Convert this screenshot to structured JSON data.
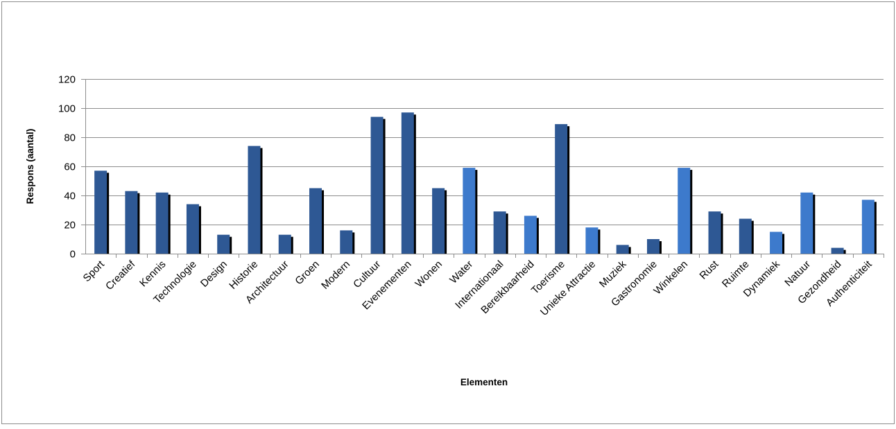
{
  "chart_data": {
    "type": "bar",
    "title": "",
    "xlabel": "Elementen",
    "ylabel": "Respons (aantal)",
    "ylim": [
      0,
      120
    ],
    "yticks": [
      0,
      20,
      40,
      60,
      80,
      100,
      120
    ],
    "grid": true,
    "legend": "none",
    "categories": [
      "Sport",
      "Creatief",
      "Kennis",
      "Technologie",
      "Design",
      "Historie",
      "Architectuur",
      "Groen",
      "Modern",
      "Cultuur",
      "Evenementen",
      "Wonen",
      "Water",
      "Internationaal",
      "Bereikbaarheid",
      "Toerisme",
      "Unieke Attractie",
      "Muziek",
      "Gastronomie",
      "Winkelen",
      "Rust",
      "Ruimte",
      "Dynamiek",
      "Natuur",
      "Gezondheid",
      "Authenticiteit"
    ],
    "values": [
      57,
      43,
      42,
      34,
      13,
      74,
      13,
      45,
      16,
      94,
      97,
      45,
      59,
      29,
      26,
      89,
      18,
      6,
      10,
      59,
      29,
      24,
      15,
      42,
      4,
      37
    ],
    "bar_color": [
      "#2e5894",
      "#2e5894",
      "#2e5894",
      "#2e5894",
      "#2e5894",
      "#2e5894",
      "#2e5894",
      "#2e5894",
      "#2e5894",
      "#2e5894",
      "#2e5894",
      "#2e5894",
      "#3d7acc",
      "#2e5894",
      "#3d7acc",
      "#2e5894",
      "#3d7acc",
      "#2e5894",
      "#2e5894",
      "#3d7acc",
      "#2e5894",
      "#2e5894",
      "#3d7acc",
      "#3d7acc",
      "#2e5894",
      "#3d7acc"
    ],
    "shadow_color": "#000000",
    "grid_color": "#8c8c8c"
  }
}
